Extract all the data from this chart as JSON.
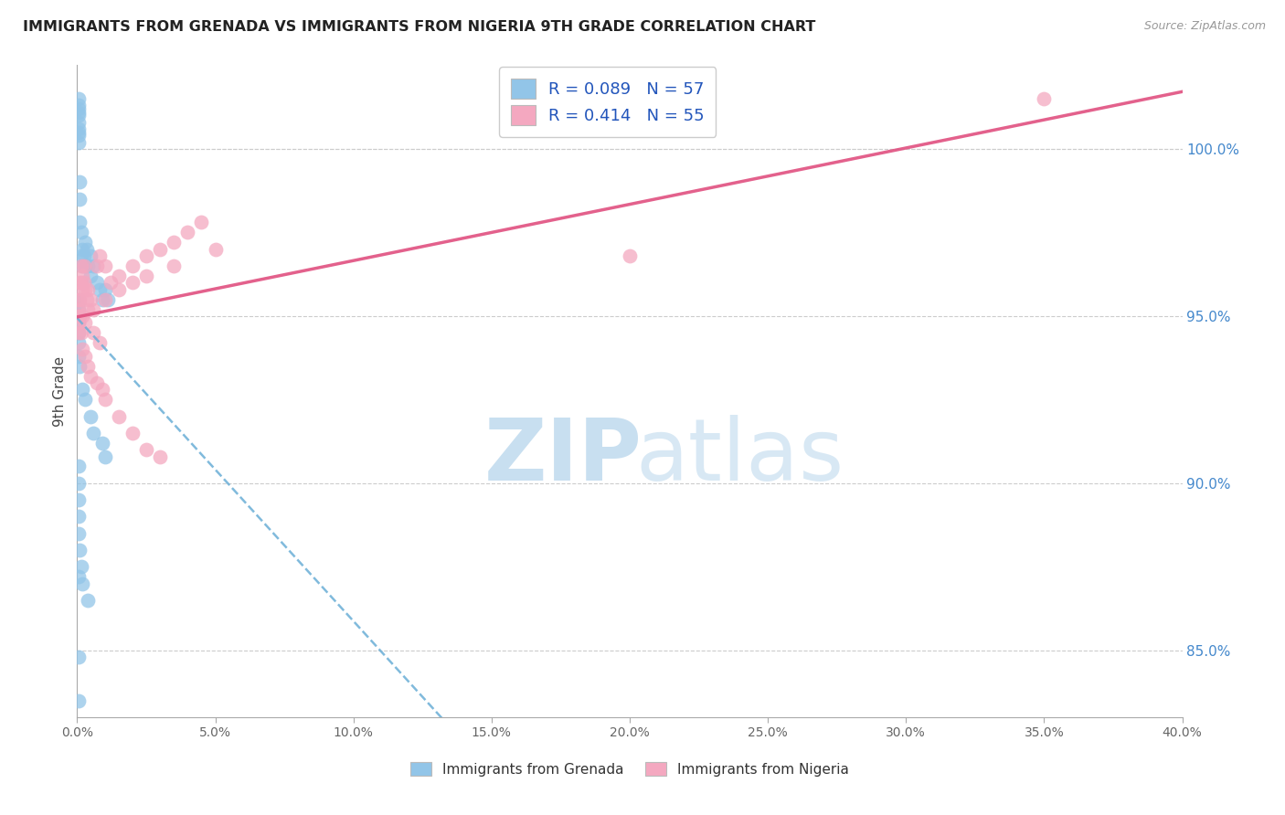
{
  "title": "IMMIGRANTS FROM GRENADA VS IMMIGRANTS FROM NIGERIA 9TH GRADE CORRELATION CHART",
  "source": "Source: ZipAtlas.com",
  "ylabel": "9th Grade",
  "legend_grenada": "Immigrants from Grenada",
  "legend_nigeria": "Immigrants from Nigeria",
  "r_grenada": 0.089,
  "n_grenada": 57,
  "r_nigeria": 0.414,
  "n_nigeria": 55,
  "color_grenada": "#92C5E8",
  "color_nigeria": "#F4A8C0",
  "color_trendline_grenada": "#6AAED6",
  "color_trendline_nigeria": "#E05080",
  "xlim": [
    0.0,
    40.0
  ],
  "ylim": [
    83.0,
    102.5
  ],
  "yticks": [
    85.0,
    90.0,
    95.0,
    100.0
  ],
  "ytick_labels": [
    "85.0%",
    "90.0%",
    "95.0%",
    "100.0%"
  ],
  "xticks": [
    0,
    5,
    10,
    15,
    20,
    25,
    30,
    35,
    40
  ],
  "grenada_x": [
    0.05,
    0.05,
    0.05,
    0.05,
    0.05,
    0.05,
    0.05,
    0.05,
    0.05,
    0.05,
    0.1,
    0.1,
    0.1,
    0.15,
    0.15,
    0.2,
    0.2,
    0.25,
    0.3,
    0.3,
    0.35,
    0.4,
    0.5,
    0.5,
    0.6,
    0.7,
    0.8,
    0.9,
    1.0,
    1.1,
    0.05,
    0.05,
    0.05,
    0.05,
    0.05,
    0.05,
    0.05,
    0.05,
    0.1,
    0.2,
    0.3,
    0.5,
    0.6,
    0.9,
    1.0,
    0.05,
    0.05,
    0.05,
    0.05,
    0.05,
    0.1,
    0.15,
    0.2,
    0.4,
    0.05,
    0.05,
    0.05
  ],
  "grenada_y": [
    101.5,
    101.3,
    101.2,
    101.1,
    101.0,
    100.8,
    100.6,
    100.5,
    100.4,
    100.2,
    99.0,
    98.5,
    97.8,
    97.5,
    96.8,
    97.0,
    96.5,
    96.8,
    96.5,
    97.2,
    97.0,
    96.5,
    96.8,
    96.2,
    96.5,
    96.0,
    95.8,
    95.5,
    95.8,
    95.5,
    95.5,
    95.4,
    95.2,
    95.0,
    94.8,
    94.5,
    94.2,
    93.8,
    93.5,
    92.8,
    92.5,
    92.0,
    91.5,
    91.2,
    90.8,
    90.5,
    90.0,
    89.5,
    89.0,
    88.5,
    88.0,
    87.5,
    87.0,
    86.5,
    87.2,
    84.8,
    83.5
  ],
  "nigeria_x": [
    0.05,
    0.05,
    0.05,
    0.05,
    0.05,
    0.1,
    0.1,
    0.1,
    0.15,
    0.15,
    0.2,
    0.2,
    0.25,
    0.25,
    0.3,
    0.35,
    0.4,
    0.5,
    0.6,
    0.7,
    0.8,
    1.0,
    1.2,
    1.5,
    2.0,
    2.5,
    3.0,
    3.5,
    4.0,
    4.5,
    0.15,
    0.2,
    0.3,
    0.4,
    0.5,
    0.7,
    0.9,
    1.0,
    1.5,
    2.0,
    2.5,
    3.0,
    0.2,
    0.3,
    0.4,
    0.6,
    0.8,
    1.0,
    1.5,
    2.0,
    2.5,
    3.5,
    5.0,
    35.0,
    20.0
  ],
  "nigeria_y": [
    95.5,
    95.2,
    95.0,
    94.8,
    94.5,
    96.0,
    95.5,
    95.0,
    96.5,
    96.0,
    96.2,
    95.8,
    96.5,
    96.0,
    95.8,
    95.5,
    95.8,
    95.5,
    95.2,
    96.5,
    96.8,
    96.5,
    96.0,
    96.2,
    96.5,
    96.8,
    97.0,
    97.2,
    97.5,
    97.8,
    94.5,
    94.0,
    93.8,
    93.5,
    93.2,
    93.0,
    92.8,
    92.5,
    92.0,
    91.5,
    91.0,
    90.8,
    95.0,
    94.8,
    95.2,
    94.5,
    94.2,
    95.5,
    95.8,
    96.0,
    96.2,
    96.5,
    97.0,
    101.5,
    96.8
  ]
}
